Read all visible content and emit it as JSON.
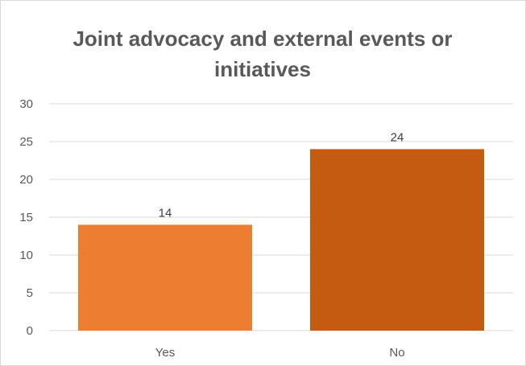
{
  "chart_data": {
    "type": "bar",
    "title_lines": [
      "Joint advocacy and external events or",
      "initiatives"
    ],
    "categories": [
      "Yes",
      "No"
    ],
    "values": [
      14,
      24
    ],
    "data_labels": [
      "14",
      "24"
    ],
    "ylim": [
      0,
      30
    ],
    "yticks": [
      0,
      5,
      10,
      15,
      20,
      25,
      30
    ],
    "ytick_labels": [
      "0",
      "5",
      "10",
      "15",
      "20",
      "25",
      "30"
    ],
    "xlabel": "",
    "ylabel": "",
    "grid": true,
    "legend": "none",
    "bar_colors": [
      "#ED7D31",
      "#C55A11"
    ]
  }
}
